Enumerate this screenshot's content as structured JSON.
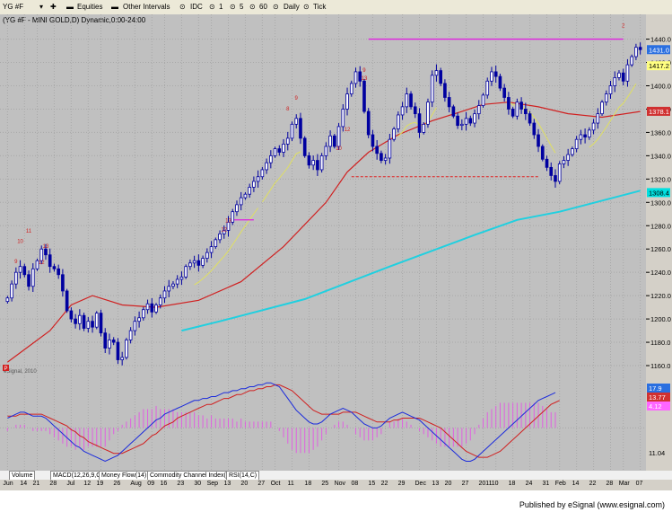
{
  "toolbar": {
    "symbol": "YG #F",
    "equities": "Equities",
    "other_intervals": "Other Intervals",
    "idc": "IDC",
    "i1": "1",
    "i5": "5",
    "i60": "60",
    "daily": "Daily",
    "tick": "Tick"
  },
  "chart_title": "(YG #F - MINI GOLD,D) Dynamic,0:00-24:00",
  "watermark": "eSignal, 2010",
  "tabs": [
    "Volume",
    "MACD(12,26,9,C)",
    "Money Flow(14)",
    "Commodity Channel Index(23,C)",
    "RSI(14,C)"
  ],
  "footer": "Published by eSignal (www.esignal.com)",
  "price_axis": {
    "labels": [
      "1440.0",
      "1420.0",
      "1400.0",
      "1380.0",
      "1360.0",
      "1340.0",
      "1320.0",
      "1300.0",
      "1280.0",
      "1260.0",
      "1240.0",
      "1220.0",
      "1200.0",
      "1180.0",
      "1160.0"
    ],
    "tags": [
      {
        "label": "1431.0",
        "color": "#2a6fe0"
      },
      {
        "label": "1417.2",
        "color": "#ffff80"
      },
      {
        "label": "1378.1",
        "color": "#d03030"
      },
      {
        "label": "1308.4",
        "color": "#00e0e0"
      }
    ]
  },
  "macd_axis": {
    "tags": [
      {
        "label": "17.9",
        "color": "#2a6fe0"
      },
      {
        "label": "13.77",
        "color": "#d03030"
      },
      {
        "label": "4.12",
        "color": "#ff66ff"
      },
      {
        "label": "11.04",
        "color": "#d4d0c8"
      }
    ]
  },
  "colors": {
    "bg": "#c0c0c0",
    "candle": "#0000a0",
    "ma_red": "#d02020",
    "ma_cyan": "#20d0e0",
    "ma_yellow": "#e0e060",
    "resist": "#e020e0",
    "support": "#e02020",
    "macd": "#1a2adc",
    "signal": "#d02020",
    "hist": "#e060e0"
  },
  "chart_data": [
    {
      "type": "candlestick",
      "title": "(YG #F - MINI GOLD,D) Dynamic,0:00-24:00",
      "ylim": [
        1150,
        1452
      ],
      "x_labels": [
        "Jun",
        "14",
        "21",
        "28",
        "Jul",
        "12",
        "19",
        "26",
        "Aug",
        "09",
        "16",
        "23",
        "30",
        "Sep",
        "13",
        "20",
        "27",
        "Oct",
        "11",
        "18",
        "25",
        "Nov",
        "08",
        "15",
        "22",
        "29",
        "Dec",
        "13",
        "20",
        "27",
        "2011",
        "10",
        "18",
        "24",
        "31",
        "Feb",
        "14",
        "22",
        "28",
        "Mar",
        "07"
      ],
      "closes": [
        1218,
        1230,
        1240,
        1245,
        1238,
        1228,
        1243,
        1250,
        1260,
        1255,
        1245,
        1243,
        1238,
        1224,
        1207,
        1200,
        1196,
        1203,
        1192,
        1198,
        1193,
        1205,
        1188,
        1175,
        1182,
        1180,
        1165,
        1167,
        1182,
        1190,
        1198,
        1201,
        1208,
        1213,
        1206,
        1212,
        1218,
        1224,
        1228,
        1230,
        1234,
        1236,
        1245,
        1248,
        1250,
        1246,
        1252,
        1257,
        1262,
        1268,
        1273,
        1276,
        1283,
        1292,
        1298,
        1304,
        1307,
        1313,
        1318,
        1322,
        1328,
        1334,
        1340,
        1346,
        1343,
        1350,
        1355,
        1367,
        1372,
        1355,
        1340,
        1332,
        1336,
        1328,
        1340,
        1348,
        1357,
        1348,
        1365,
        1380,
        1393,
        1402,
        1412,
        1404,
        1378,
        1358,
        1348,
        1342,
        1336,
        1338,
        1354,
        1363,
        1375,
        1382,
        1393,
        1382,
        1376,
        1360,
        1367,
        1386,
        1409,
        1413,
        1402,
        1390,
        1382,
        1374,
        1366,
        1367,
        1372,
        1368,
        1376,
        1383,
        1392,
        1404,
        1412,
        1408,
        1398,
        1390,
        1380,
        1374,
        1386,
        1380,
        1376,
        1368,
        1358,
        1348,
        1337,
        1330,
        1323,
        1318,
        1333,
        1336,
        1341,
        1346,
        1354,
        1358,
        1356,
        1362,
        1368,
        1376,
        1386,
        1393,
        1400,
        1407,
        1411,
        1404,
        1418,
        1425,
        1433,
        1431
      ],
      "moving_averages": [
        {
          "color": "#20d0e0",
          "values": [
            [
              41,
              1190
            ],
            [
              50,
              1198
            ],
            [
              70,
              1217
            ],
            [
              90,
              1245
            ],
            [
              110,
              1272
            ],
            [
              120,
              1285
            ],
            [
              130,
              1292
            ],
            [
              149,
              1310
            ]
          ]
        },
        {
          "color": "#d02020",
          "values": [
            [
              0,
              1163
            ],
            [
              10,
              1190
            ],
            [
              15,
              1212
            ],
            [
              20,
              1220
            ],
            [
              27,
              1212
            ],
            [
              35,
              1210
            ],
            [
              45,
              1216
            ],
            [
              55,
              1232
            ],
            [
              65,
              1262
            ],
            [
              75,
              1300
            ],
            [
              80,
              1326
            ],
            [
              85,
              1343
            ],
            [
              92,
              1358
            ],
            [
              100,
              1370
            ],
            [
              107,
              1378
            ],
            [
              112,
              1384
            ],
            [
              118,
              1386
            ],
            [
              125,
              1382
            ],
            [
              132,
              1376
            ],
            [
              140,
              1373
            ],
            [
              149,
              1378
            ]
          ]
        }
      ],
      "levels": [
        {
          "y": 1440,
          "x_from": 85,
          "x_to": 145,
          "color": "#e020e0"
        },
        {
          "y": 1322,
          "x_from": 81,
          "x_to": 125,
          "color": "#e02020"
        },
        {
          "y": 1285,
          "x_from": 53,
          "x_to": 58,
          "color": "#e020e0"
        }
      ],
      "td_counts": [
        {
          "x": 2,
          "y": 1248,
          "text": "9"
        },
        {
          "x": 5,
          "y": 1274,
          "text": "11"
        },
        {
          "x": 3,
          "y": 1265,
          "text": "10"
        },
        {
          "x": 9,
          "y": 1261,
          "text": "13"
        },
        {
          "x": 8,
          "y": 1247,
          "text": "12"
        },
        {
          "x": 52,
          "y": 1283,
          "text": "13"
        },
        {
          "x": 51,
          "y": 1275,
          "text": "12"
        },
        {
          "x": 68,
          "y": 1388,
          "text": "9"
        },
        {
          "x": 66,
          "y": 1379,
          "text": "8"
        },
        {
          "x": 78,
          "y": 1345,
          "text": "10"
        },
        {
          "x": 80,
          "y": 1361,
          "text": "12"
        },
        {
          "x": 84,
          "y": 1405,
          "text": "13"
        },
        {
          "x": 84,
          "y": 1412,
          "text": "9"
        },
        {
          "x": 145,
          "y": 1450,
          "text": "2"
        }
      ]
    },
    {
      "type": "line",
      "title": "MACD(12,26,9,C)",
      "ylim": [
        -20,
        24
      ],
      "series": [
        {
          "values": [
            5,
            6,
            7,
            8,
            8,
            7,
            6,
            6,
            6,
            5,
            3,
            1,
            -1,
            -3,
            -5,
            -7,
            -9,
            -10,
            -12,
            -13,
            -14,
            -15,
            -16,
            -17,
            -16,
            -15,
            -14,
            -12,
            -10,
            -8,
            -6,
            -4,
            -2,
            0,
            2,
            4,
            5,
            7,
            8,
            9,
            10,
            11,
            12,
            13,
            14,
            14,
            15,
            15,
            16,
            16,
            17,
            18,
            18,
            19,
            19,
            20,
            20,
            21,
            21,
            22,
            22,
            23,
            23,
            22,
            21,
            18,
            15,
            12,
            9,
            7,
            5,
            3,
            2,
            2,
            3,
            5,
            7,
            8,
            9,
            10,
            9,
            8,
            6,
            4,
            2,
            1,
            0,
            0,
            1,
            3,
            5,
            6,
            7,
            8,
            7,
            6,
            5,
            4,
            2,
            0,
            -2,
            -4,
            -6,
            -8,
            -10,
            -12,
            -14,
            -16,
            -17,
            -17,
            -16,
            -14,
            -12,
            -10,
            -8,
            -6,
            -4,
            -2,
            0,
            2,
            4,
            6,
            8,
            10,
            12,
            14,
            15,
            16,
            17,
            18
          ]
        },
        {
          "values": [
            6,
            6,
            6,
            7,
            7,
            7,
            7,
            7,
            7,
            6,
            5,
            4,
            3,
            2,
            1,
            -1,
            -2,
            -4,
            -5,
            -7,
            -8,
            -9,
            -10,
            -11,
            -12,
            -13,
            -13,
            -13,
            -12,
            -11,
            -10,
            -9,
            -8,
            -6,
            -4,
            -3,
            -1,
            1,
            2,
            3,
            5,
            6,
            7,
            8,
            9,
            10,
            11,
            12,
            12,
            13,
            14,
            15,
            15,
            16,
            17,
            17,
            18,
            19,
            19,
            20,
            20,
            21,
            21,
            22,
            22,
            21,
            20,
            19,
            17,
            15,
            13,
            11,
            9,
            8,
            7,
            7,
            7,
            7,
            7,
            8,
            8,
            8,
            8,
            7,
            6,
            5,
            4,
            3,
            3,
            3,
            3,
            4,
            4,
            5,
            5,
            5,
            5,
            5,
            4,
            3,
            2,
            1,
            0,
            -2,
            -4,
            -6,
            -8,
            -10,
            -12,
            -13,
            -14,
            -15,
            -15,
            -15,
            -14,
            -13,
            -12,
            -10,
            -8,
            -6,
            -4,
            -2,
            0,
            2,
            4,
            6,
            8,
            10,
            12,
            13,
            14
          ]
        }
      ]
    }
  ]
}
